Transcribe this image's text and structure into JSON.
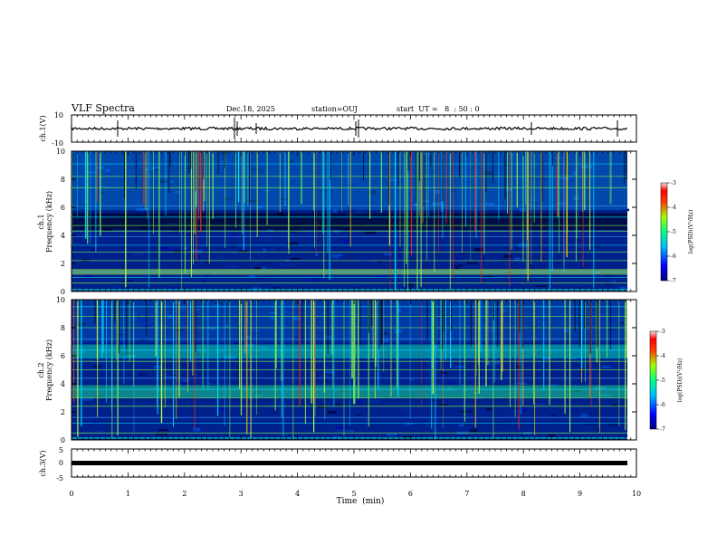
{
  "header": {
    "title": "VLF Spectra",
    "date": "Dec.18, 2025",
    "station": "station=OUJ",
    "start": "start  UT =   8  : 50 : 0"
  },
  "colors": {
    "spec_bg": "#00208c",
    "line_green": "#7dff50",
    "line_red": "#ff3010",
    "line_cyan": "#00e0ff"
  },
  "chart_data": [
    {
      "type": "line",
      "name": "ch1-waveform",
      "ylabel": "ch.1(V)",
      "ylim": [
        -10,
        10
      ],
      "y_ticks": [
        "10",
        "-10"
      ],
      "x": [
        0,
        10
      ],
      "baseline": 0
    },
    {
      "type": "heatmap",
      "name": "ch1-spectrogram",
      "ylabel": "ch.1\nFrequency (kHz)",
      "ylabel_top": "ch.1",
      "ylabel_bottom": "Frequency  (kHz)",
      "ylim": [
        0,
        10
      ],
      "y_ticks": [
        "0",
        "2",
        "4",
        "6",
        "8",
        "10"
      ],
      "horizontal_lines_khz": [
        0.6,
        1.0,
        1.4,
        2.2,
        2.8,
        3.3,
        3.9,
        4.3,
        4.7,
        5.3,
        6.1,
        7.4,
        8.2,
        9.1
      ]
    },
    {
      "type": "heatmap",
      "name": "ch2-spectrogram",
      "ylabel_top": "ch.2",
      "ylabel_bottom": "Frequency  (kHz)",
      "ylim": [
        0,
        10
      ],
      "y_ticks": [
        "0",
        "2",
        "4",
        "6",
        "8",
        "10"
      ],
      "horizontal_lines_khz": [
        0.5,
        1.2,
        1.6,
        2.4,
        3.0,
        3.6,
        4.4,
        5.0,
        5.6,
        6.4,
        7.2,
        8.0,
        8.8,
        9.5
      ]
    },
    {
      "type": "line",
      "name": "ch3-waveform",
      "ylabel": "ch.3(V)",
      "ylim": [
        -5,
        5
      ],
      "y_ticks": [
        "5",
        "0",
        "-5"
      ],
      "baseline": -1.3
    }
  ],
  "colorbar": {
    "label": "log(PSD)(V²/Hz)",
    "ticks": [
      "-3",
      "-4",
      "-5",
      "-6",
      "-7"
    ],
    "range": [
      -7,
      -3
    ]
  },
  "xaxis": {
    "label": "Time  (min)",
    "ticks": [
      "0",
      "1",
      "2",
      "3",
      "4",
      "5",
      "6",
      "7",
      "8",
      "9",
      "10"
    ],
    "xlim": [
      0,
      10
    ]
  }
}
